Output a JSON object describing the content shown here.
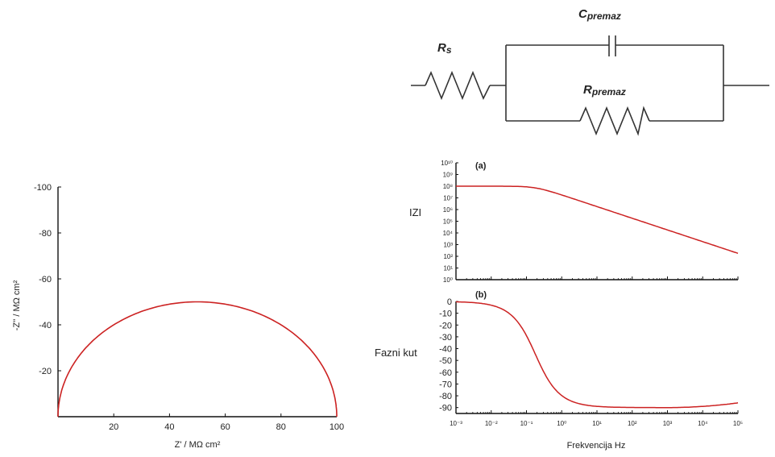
{
  "circuit": {
    "rs_label": "R",
    "rs_sub": "s",
    "c_label": "C",
    "c_sub": "premaz",
    "r_label": "R",
    "r_sub": "premaz"
  },
  "chart_data": [
    {
      "type": "line",
      "name": "nyquist",
      "xlabel": "Z' / MΩ cm²",
      "ylabel": "-Z'' / MΩ cm²",
      "xlim": [
        0,
        100
      ],
      "ylim": [
        0,
        -100
      ],
      "xticks": [
        "20",
        "40",
        "60",
        "80",
        "100"
      ],
      "yticks": [
        "-20",
        "-40",
        "-60",
        "-80",
        "-100"
      ],
      "series": [
        {
          "color": "#cc2222",
          "center": 50,
          "radius": 50,
          "points": [
            [
              0,
              0
            ],
            [
              6.7,
              -25
            ],
            [
              25,
              -43.3
            ],
            [
              50,
              -50
            ],
            [
              75,
              -43.3
            ],
            [
              93.3,
              -25
            ],
            [
              100,
              0
            ]
          ]
        }
      ]
    },
    {
      "type": "line",
      "name": "bode-modulus",
      "panel_label": "(a)",
      "ylabel": "IZI",
      "yscale": "log",
      "xscale": "log",
      "xlim": [
        0.001,
        100000
      ],
      "ylim": [
        1,
        10000000000
      ],
      "yticks": [
        "10⁰",
        "10¹",
        "10²",
        "10³",
        "10⁴",
        "10⁵",
        "10⁶",
        "10⁷",
        "10⁸",
        "10⁹",
        "10¹⁰"
      ],
      "series": [
        {
          "color": "#cc2222",
          "x": [
            0.001,
            0.01,
            0.1,
            0.3,
            1,
            10,
            100,
            1000,
            10000,
            100000
          ],
          "y": [
            100000000,
            100000000,
            95000000,
            60000000,
            18000000,
            1800000,
            180000,
            18000,
            1800,
            180
          ]
        }
      ]
    },
    {
      "type": "line",
      "name": "bode-phase",
      "panel_label": "(b)",
      "ylabel": "Fazni kut",
      "xlabel": "Frekvencija Hz",
      "xscale": "log",
      "xlim": [
        0.001,
        100000
      ],
      "ylim": [
        0,
        -95
      ],
      "yticks": [
        "0",
        "-10",
        "-20",
        "-30",
        "-40",
        "-50",
        "-60",
        "-70",
        "-80",
        "-90"
      ],
      "xticks": [
        "10⁻³",
        "10⁻²",
        "10⁻¹",
        "10⁰",
        "10¹",
        "10²",
        "10³",
        "10⁴",
        "10⁵"
      ],
      "series": [
        {
          "color": "#cc2222",
          "x": [
            0.001,
            0.01,
            0.05,
            0.1,
            0.3,
            1,
            10,
            100,
            1000,
            10000,
            100000
          ],
          "y": [
            -1,
            -4,
            -15,
            -30,
            -60,
            -82,
            -88.5,
            -89,
            -89,
            -88.5,
            -85
          ]
        }
      ]
    }
  ]
}
